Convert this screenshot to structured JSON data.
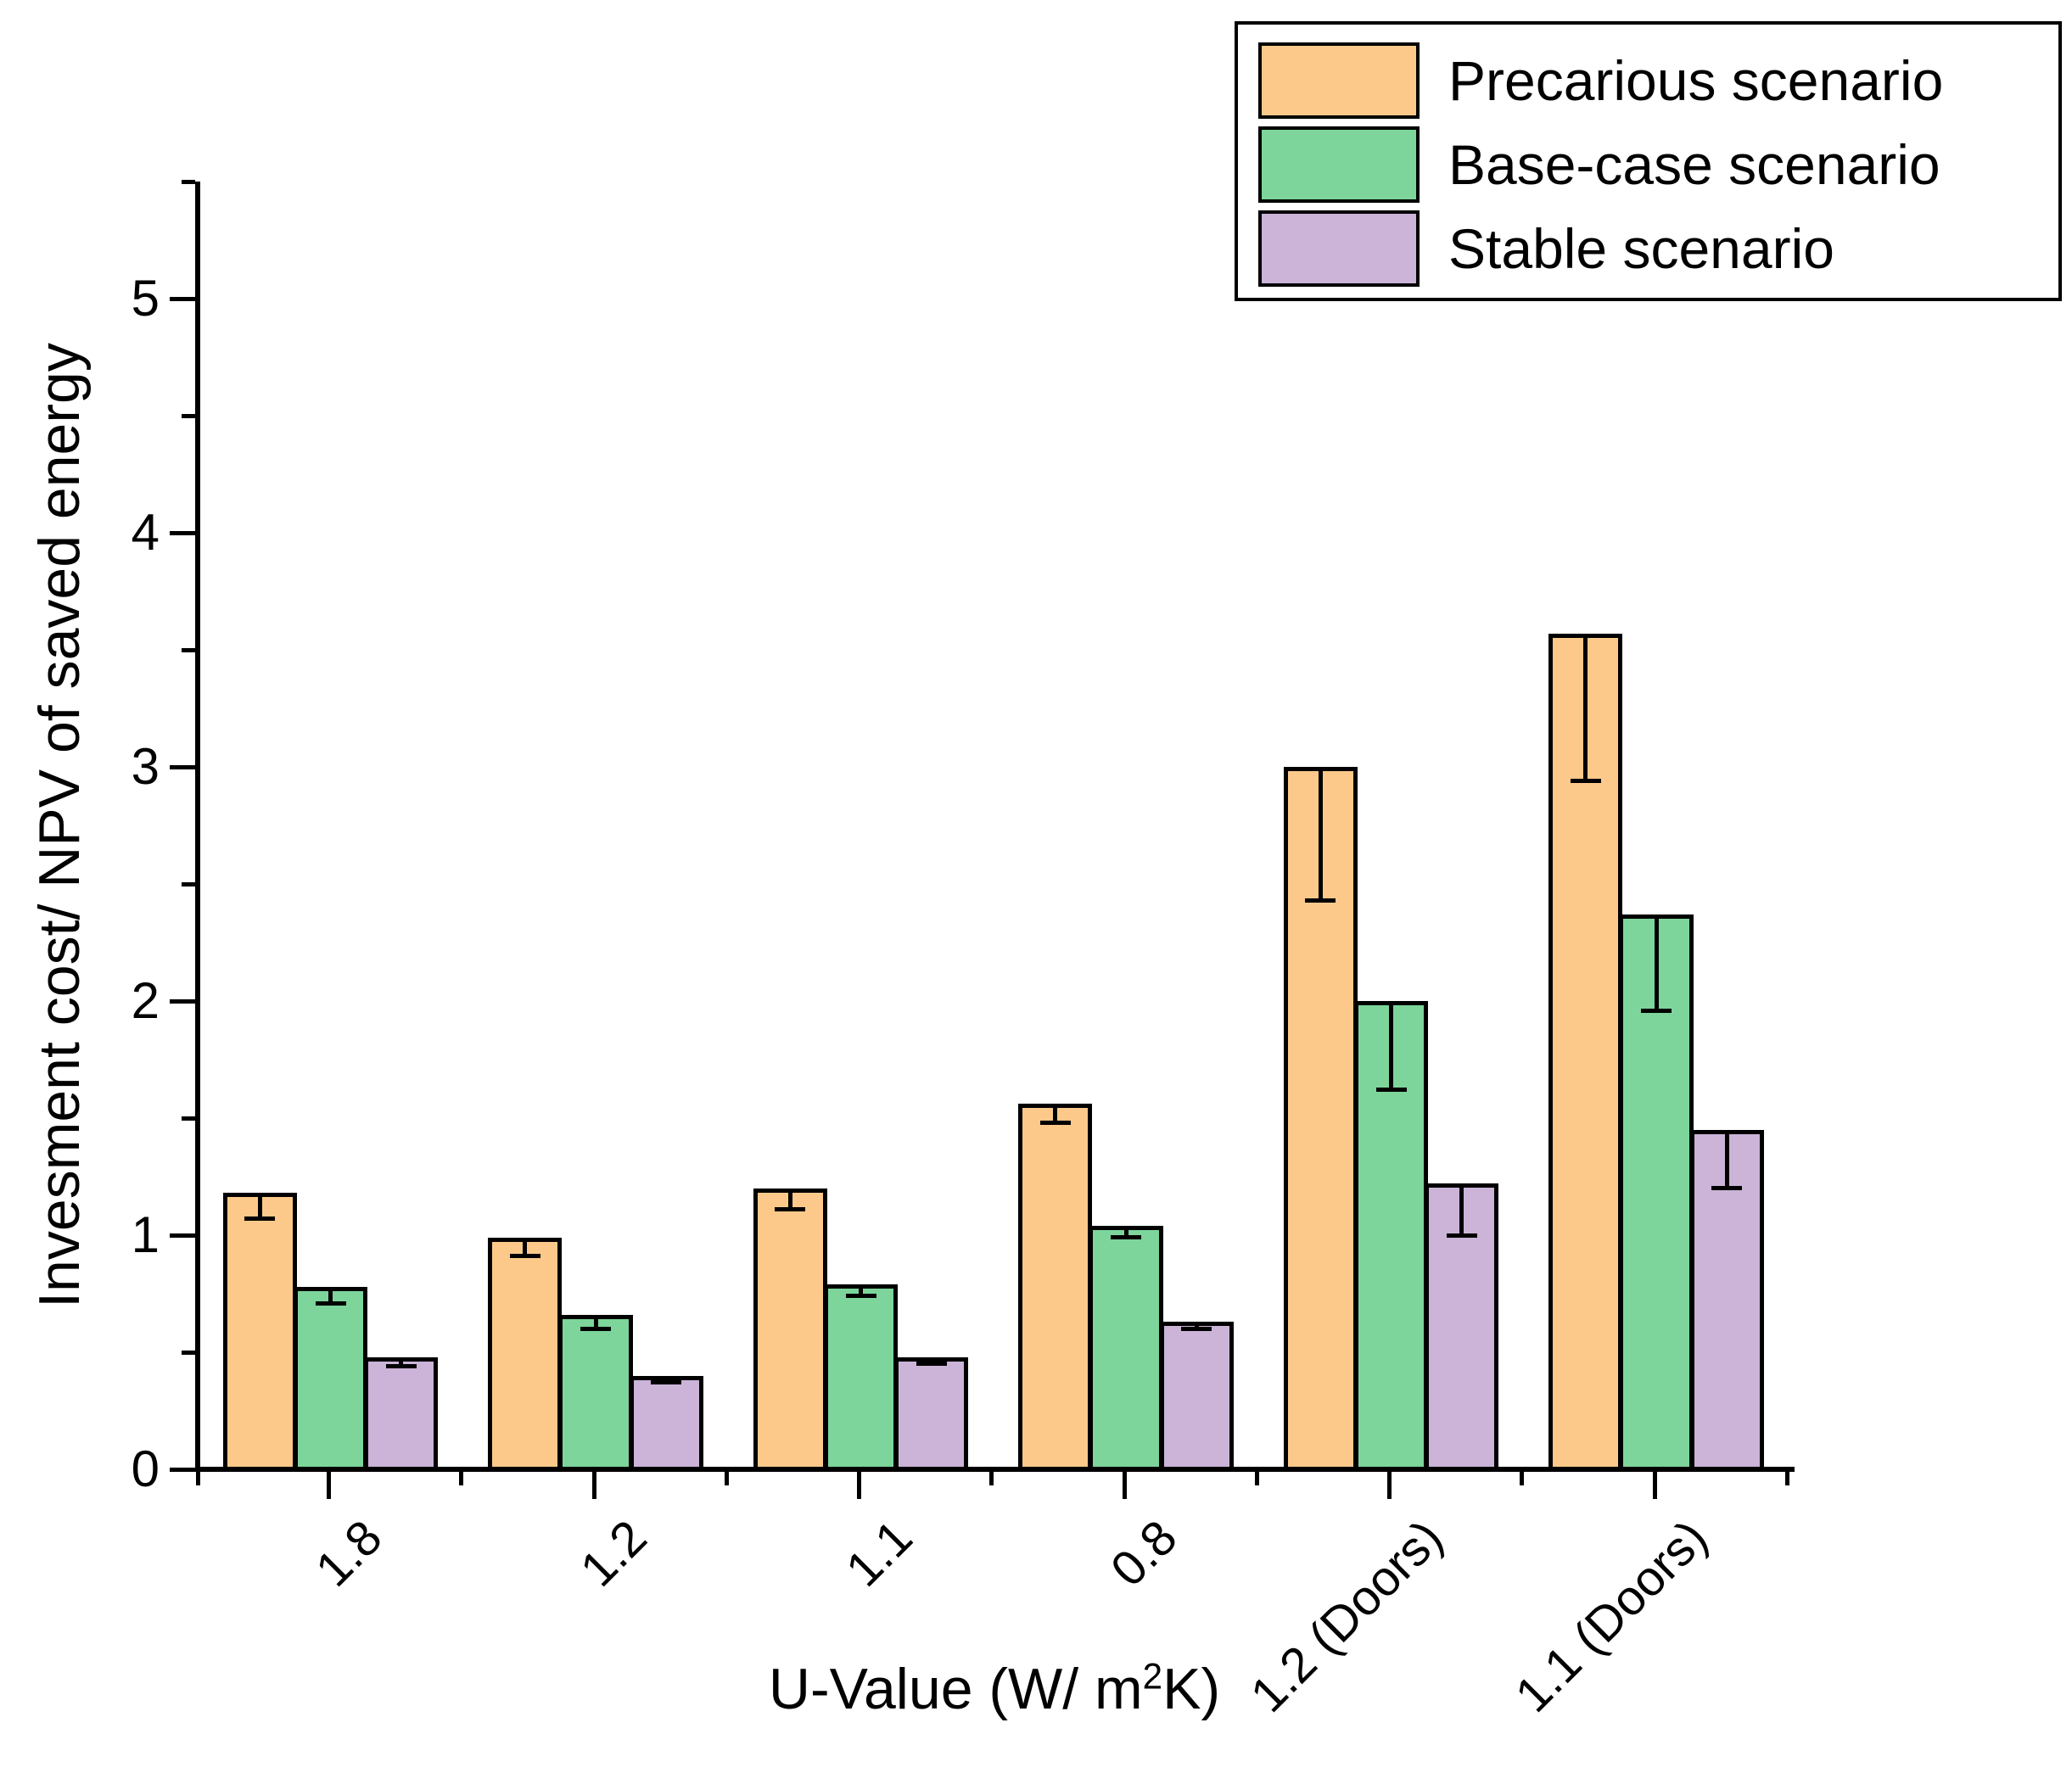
{
  "chart_data": {
    "type": "bar",
    "title": "",
    "categories": [
      "1.8",
      "1.2",
      "1.1",
      "0.8",
      "1.2 (Doors)",
      "1.1 (Doors)"
    ],
    "series": [
      {
        "name": "Precarious scenario",
        "color": "#FDC98A",
        "values": [
          1.18,
          0.99,
          1.2,
          1.56,
          3.0,
          3.57
        ],
        "errors_minus": [
          0.11,
          0.08,
          0.09,
          0.08,
          0.57,
          0.63
        ]
      },
      {
        "name": "Base-case scenario",
        "color": "#7DD59B",
        "values": [
          0.78,
          0.66,
          0.79,
          1.04,
          2.0,
          2.37
        ],
        "errors_minus": [
          0.07,
          0.06,
          0.05,
          0.05,
          0.38,
          0.41
        ]
      },
      {
        "name": "Stable scenario",
        "color": "#CBB4D8",
        "values": [
          0.48,
          0.4,
          0.48,
          0.63,
          1.22,
          1.45
        ],
        "errors_minus": [
          0.04,
          0.03,
          0.03,
          0.03,
          0.22,
          0.25
        ]
      }
    ],
    "xlabel_parts": {
      "prefix": "U-Value (W/ m",
      "sup": "2",
      "suffix": "K)"
    },
    "ylabel": "Invesment cost/ NPV of saved energy",
    "y_ticks": [
      0,
      1,
      2,
      3,
      4,
      5
    ],
    "y_minor_step": 0.5,
    "ylim": [
      0,
      5.5
    ],
    "grid": false,
    "legend_position": "top-right",
    "bar_border_color": "#000000",
    "axis_color": "#000000"
  }
}
